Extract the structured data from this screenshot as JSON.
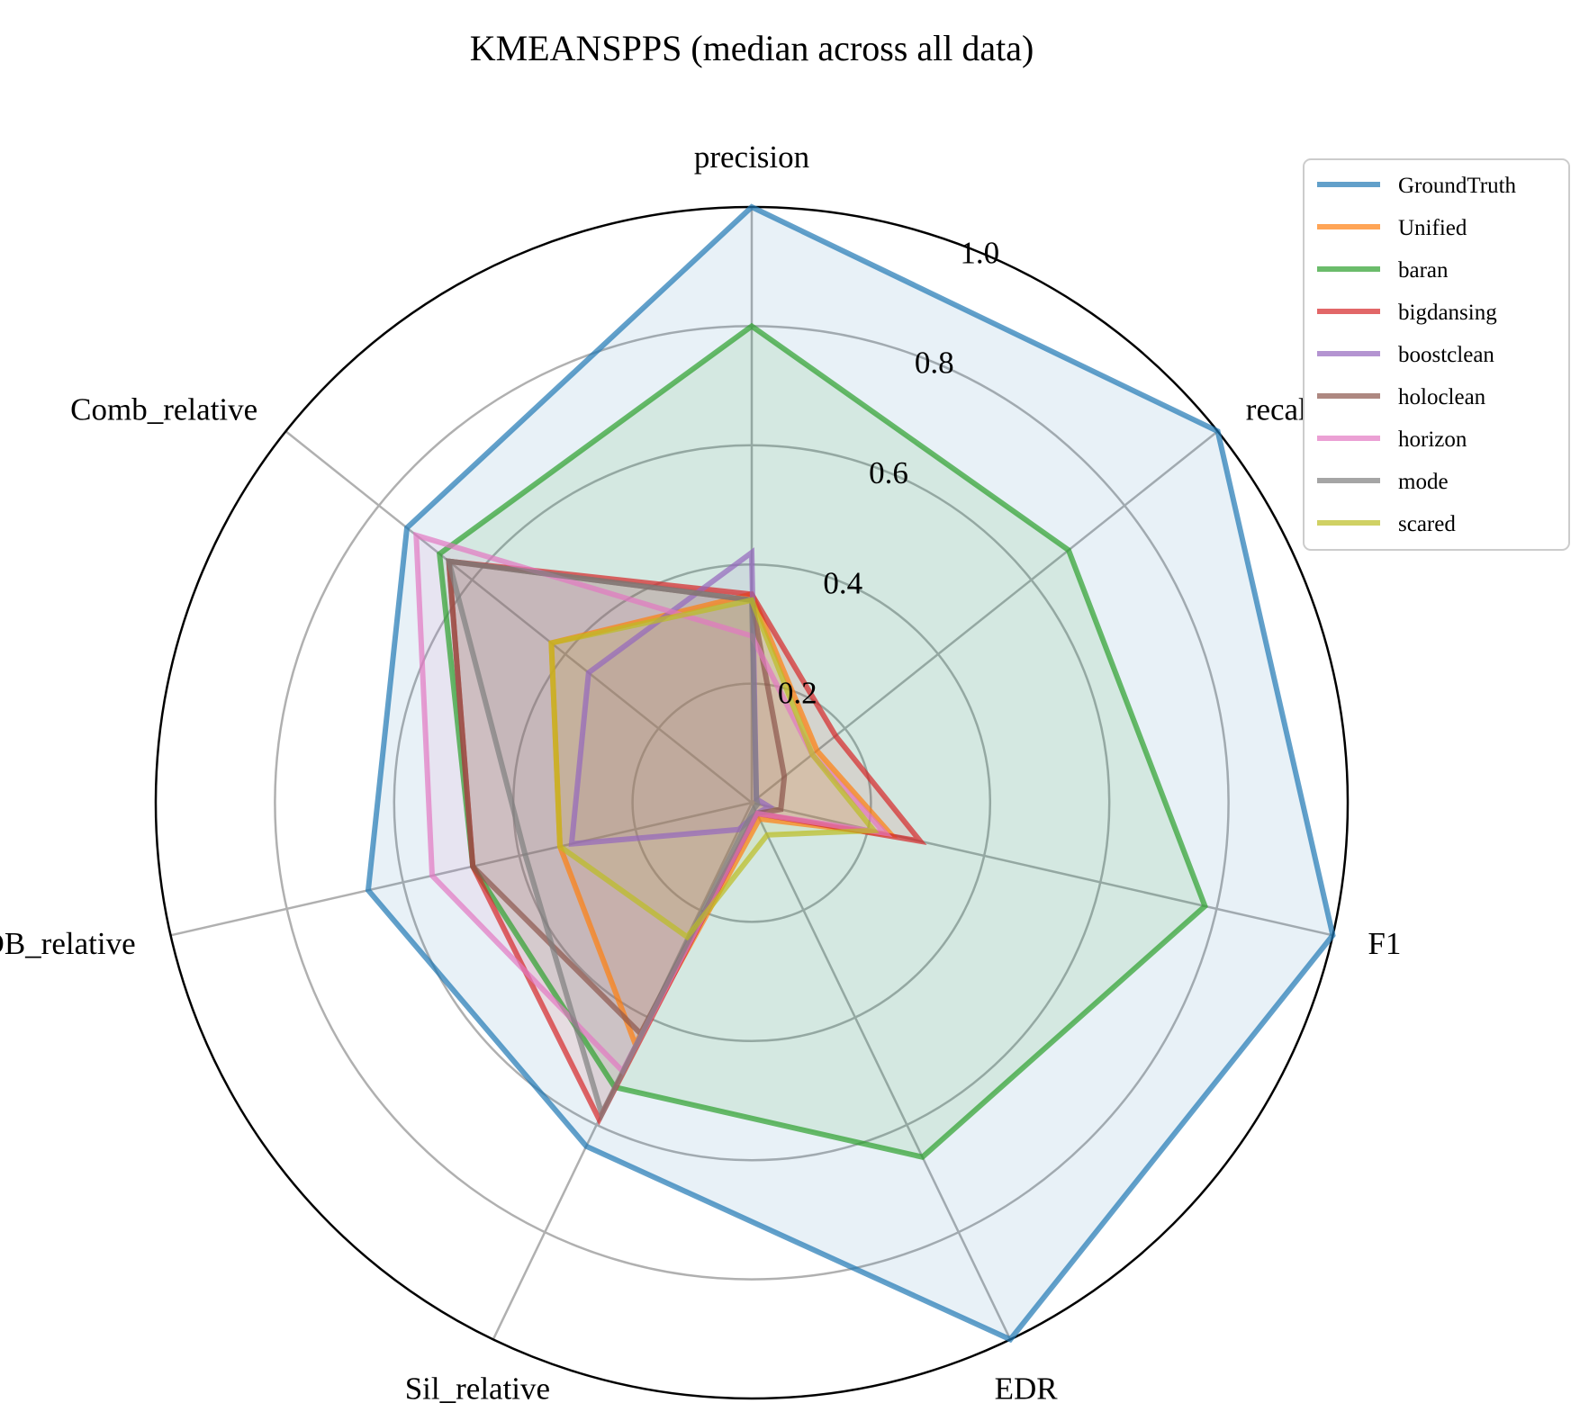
{
  "chart_data": {
    "type": "radar",
    "title": "KMEANSPPS (median across all data)",
    "axes": [
      "precision",
      "recall",
      "F1",
      "EDR",
      "Sil_relative",
      "DB_relative",
      "Comb_relative"
    ],
    "radial_ticks": [
      "0.2",
      "0.4",
      "0.6",
      "0.8",
      "1.0"
    ],
    "rlim": [
      0,
      1
    ],
    "grid": true,
    "legend_position": "top-right",
    "series": [
      {
        "name": "GroundTruth",
        "color": "#1f77b4",
        "fill": true,
        "values": [
          1.0,
          1.0,
          1.0,
          1.0,
          0.64,
          0.66,
          0.74
        ]
      },
      {
        "name": "Unified",
        "color": "#ff7f0e",
        "fill": true,
        "values": [
          0.35,
          0.14,
          0.24,
          0.03,
          0.45,
          0.33,
          0.43
        ]
      },
      {
        "name": "baran",
        "color": "#2ca02c",
        "fill": true,
        "values": [
          0.8,
          0.68,
          0.78,
          0.66,
          0.53,
          0.48,
          0.67
        ]
      },
      {
        "name": "bigdansing",
        "color": "#d62728",
        "fill": true,
        "values": [
          0.35,
          0.18,
          0.29,
          0.02,
          0.59,
          0.48,
          0.65
        ]
      },
      {
        "name": "boostclean",
        "color": "#9467bd",
        "fill": true,
        "values": [
          0.42,
          0.01,
          0.03,
          0.02,
          0.05,
          0.31,
          0.35
        ]
      },
      {
        "name": "holoclean",
        "color": "#8c564b",
        "fill": true,
        "values": [
          0.34,
          0.07,
          0.05,
          0.02,
          0.43,
          0.48,
          0.65
        ]
      },
      {
        "name": "horizon",
        "color": "#e377c2",
        "fill": true,
        "values": [
          0.28,
          0.13,
          0.23,
          0.02,
          0.5,
          0.55,
          0.72
        ]
      },
      {
        "name": "mode",
        "color": "#7f7f7f",
        "fill": true,
        "values": [
          0.34,
          0.01,
          0.01,
          0.01,
          0.58,
          0.39,
          0.65
        ]
      },
      {
        "name": "scared",
        "color": "#bcbd22",
        "fill": true,
        "values": [
          0.34,
          0.13,
          0.21,
          0.06,
          0.25,
          0.33,
          0.43
        ]
      }
    ]
  }
}
